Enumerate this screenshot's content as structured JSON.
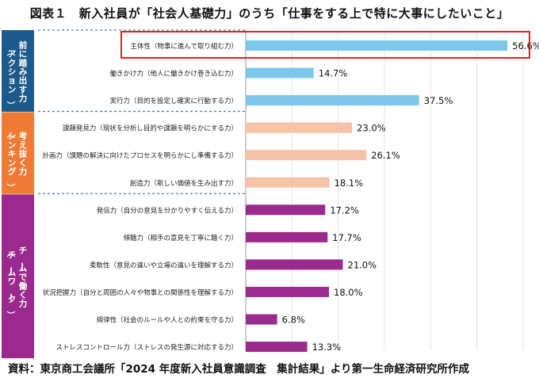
{
  "title": "図表１　新入社員が「社会人基礎力」のうち「仕事をする上で特に大事にしたいこと」",
  "source": "資料：東京商工会議所「2024 年度新入社員意識調査　集計結果」より第一生命経済研究所作成",
  "colors": {
    "action": "#7dc8ea",
    "thinking": "#f6c3a6",
    "teamwork": "#9b2a8e",
    "highlight_border": "#e0202a",
    "label_action_bg": "#1d5a8c",
    "label_thinking_bg": "#ee7a34",
    "label_teamwork_bg": "#9b2a8e"
  },
  "groups": [
    {
      "key": "action",
      "label": "前に踏み出す力\n（アクション）"
    },
    {
      "key": "thinking",
      "label": "考え抜く力\n（シンキング）"
    },
    {
      "key": "teamwork",
      "label": "チームで働く力\n（チームワーク）"
    }
  ],
  "chart_data": {
    "type": "bar",
    "orientation": "horizontal",
    "xlim": [
      0,
      60
    ],
    "grid": true,
    "categories": [
      "主体性（物事に進んで取り組む力）",
      "働きかけ力（他人に働きかけ巻き込む力）",
      "実行力（目的を設定し確実に行動する力）",
      "課題発見力（現状を分析し目的や課題を明らかにする力）",
      "計画力（課題の解決に向けたプロセスを明らかにし準備する力）",
      "創造力（新しい価値を生み出す力）",
      "発信力（自分の意見を分かりやすく伝える力）",
      "傾聴力（相手の意見を丁寧に聴く力）",
      "柔軟性（意見の違いや立場の違いを理解する力）",
      "状況把握力（自分と周囲の人々や物事との関係性を理解する力）",
      "規律性（社会のルールや人との約束を守る力）",
      "ストレスコントロール力（ストレスの発生源に対応する力）"
    ],
    "values": [
      56.6,
      14.7,
      37.5,
      23.0,
      26.1,
      18.1,
      17.2,
      17.7,
      21.0,
      18.0,
      6.8,
      13.3
    ],
    "value_labels": [
      "56.6%",
      "14.7%",
      "37.5%",
      "23.0%",
      "26.1%",
      "18.1%",
      "17.2%",
      "17.7%",
      "21.0%",
      "18.0%",
      "6.8%",
      "13.3%"
    ],
    "group_of": [
      "action",
      "action",
      "action",
      "thinking",
      "thinking",
      "thinking",
      "teamwork",
      "teamwork",
      "teamwork",
      "teamwork",
      "teamwork",
      "teamwork"
    ],
    "highlighted_index": 0
  }
}
